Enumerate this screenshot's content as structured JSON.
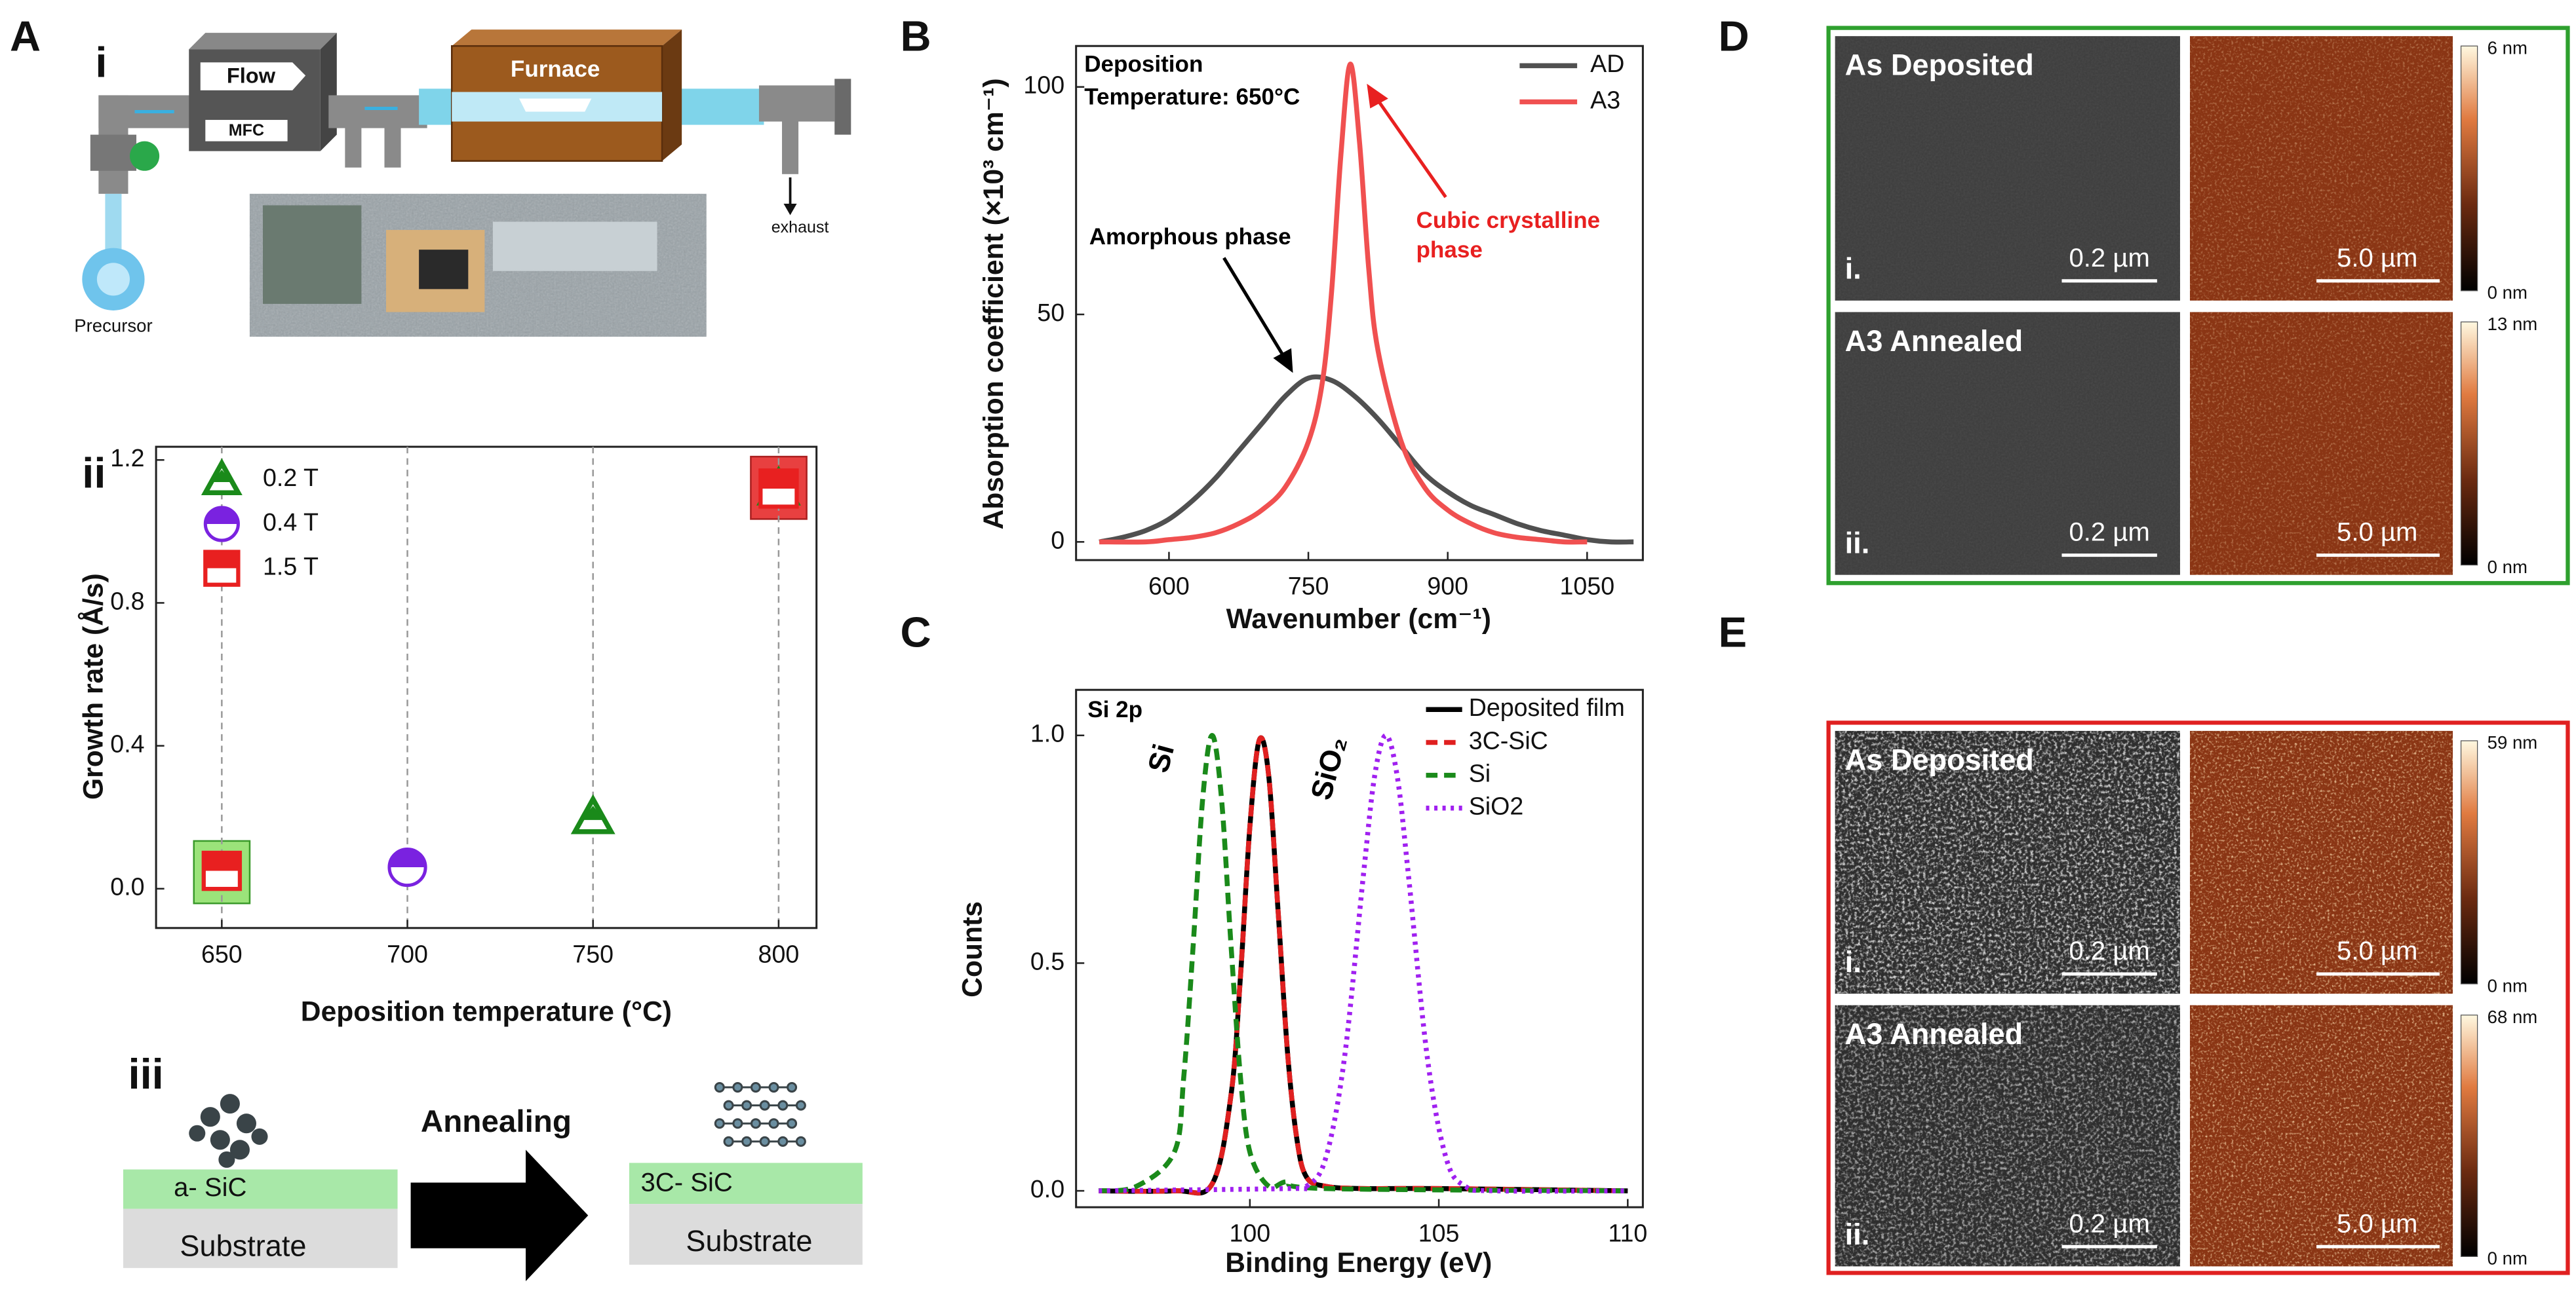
{
  "figure": {
    "panel_labels": [
      "A",
      "i",
      "ii",
      "iii",
      "B",
      "C",
      "D",
      "E"
    ],
    "schematic": {
      "flow": "Flow",
      "mfc": "MFC",
      "furnace": "Furnace",
      "exhaust": "exhaust",
      "precursor": "Precursor"
    },
    "annealing": {
      "before_film": "a- SiC",
      "before_substrate": "Substrate",
      "arrow": "Annealing",
      "after_film": "3C- SiC",
      "after_substrate": "Substrate"
    },
    "micrographs": {
      "D": [
        {
          "title": "As Deposited",
          "index": "i.",
          "sem_scale": "0.2 µm",
          "afm_scale": "5.0 µm",
          "cbar_max": "6 nm",
          "cbar_min": "0 nm"
        },
        {
          "title": "A3 Annealed",
          "index": "ii.",
          "sem_scale": "0.2 µm",
          "afm_scale": "5.0 µm",
          "cbar_max": "13 nm",
          "cbar_min": "0 nm"
        }
      ],
      "E": [
        {
          "title": "As Deposited",
          "index": "i.",
          "sem_scale": "0.2 µm",
          "afm_scale": "5.0 µm",
          "cbar_max": "59 nm",
          "cbar_min": "0 nm"
        },
        {
          "title": "A3 Annealed",
          "index": "ii.",
          "sem_scale": "0.2 µm",
          "afm_scale": "5.0 µm",
          "cbar_max": "68 nm",
          "cbar_min": "0 nm"
        }
      ]
    }
  },
  "chart_data": [
    {
      "type": "scatter",
      "xlabel": "Deposition temperature (°C)",
      "ylabel": "Growth rate (Å/s)",
      "xlim": [
        632.3,
        810.2
      ],
      "ylim": [
        -0.11,
        1.237
      ],
      "xticks": [
        650,
        700,
        750,
        800
      ],
      "yticks": [
        {
          "value": 0.0,
          "label": "0.0"
        },
        0.4,
        0.8,
        1.2
      ],
      "grid": "x",
      "legend": "upper left",
      "series": [
        {
          "name": "0.2 T",
          "color": "#1a8a1a",
          "marker": "triangle",
          "x": [
            750,
            800
          ],
          "values": [
            0.2,
            1.12
          ]
        },
        {
          "name": "0.4 T",
          "color": "#7a22e0",
          "marker": "half-circle",
          "x": [
            700
          ],
          "values": [
            0.06
          ]
        },
        {
          "name": "1.5 T",
          "color": "#e82020",
          "marker": "half-square",
          "x": [
            650,
            800
          ],
          "values": [
            0.05,
            1.12
          ]
        }
      ]
    },
    {
      "type": "line",
      "xlabel": "Wavenumber (cm⁻¹)",
      "ylabel": "Absorption coefficient (×10³ cm⁻¹)",
      "xlim": [
        500,
        1110
      ],
      "ylim": [
        -4,
        109
      ],
      "xticks": [
        600,
        750,
        900,
        1050
      ],
      "yticks": [
        0,
        50,
        100
      ],
      "legend": "upper right",
      "annotations": {
        "condition": [
          "Deposition",
          "Temperature: 650°C"
        ],
        "amorphous": "Amorphous phase",
        "cubic": [
          "Cubic crystalline",
          "phase"
        ]
      },
      "series": [
        {
          "name": "AD",
          "color": "#505050",
          "style": "solid",
          "x": [
            525,
            550,
            575,
            600,
            625,
            650,
            675,
            700,
            725,
            750,
            775,
            800,
            825,
            850,
            875,
            900,
            925,
            950,
            975,
            1000,
            1025,
            1050,
            1075,
            1100
          ],
          "values": [
            0,
            1,
            2.5,
            5,
            9,
            14,
            20,
            26,
            32,
            36,
            35.5,
            32,
            27,
            21,
            15,
            11,
            8,
            6,
            4,
            2.5,
            1.5,
            0.5,
            0,
            0
          ]
        },
        {
          "name": "A3",
          "color": "#f05050",
          "style": "solid",
          "x": [
            525,
            575,
            600,
            625,
            650,
            675,
            700,
            725,
            750,
            765,
            775,
            785,
            795,
            805,
            815,
            825,
            850,
            875,
            900,
            925,
            950,
            975,
            1000,
            1025,
            1050
          ],
          "values": [
            0,
            0,
            0.5,
            1,
            2,
            4,
            7,
            12,
            22,
            35,
            55,
            85,
            105,
            88,
            60,
            42,
            22,
            12,
            7,
            4,
            2,
            1,
            0.5,
            0,
            0
          ]
        }
      ]
    },
    {
      "type": "line",
      "xlabel": "Binding Energy (eV)",
      "ylabel": "Counts",
      "xlim": [
        95.4,
        110.4
      ],
      "ylim": [
        -0.036,
        1.1
      ],
      "xticks": [
        100,
        105,
        110
      ],
      "yticks": [
        {
          "value": 0.0,
          "label": "0.0"
        },
        0.5,
        {
          "value": 1.0,
          "label": "1.0"
        }
      ],
      "legend": "upper right",
      "annotations": {
        "core_level": "Si 2p",
        "si": "Si",
        "sio2": "SiO₂"
      },
      "series": [
        {
          "name": "Deposited film",
          "color": "#000000",
          "style": "solid",
          "x": [
            96,
            98,
            99,
            99.5,
            99.75,
            100,
            100.25,
            100.5,
            100.75,
            101,
            101.25,
            101.5,
            102,
            103,
            105,
            110
          ],
          "values": [
            0,
            0,
            0.015,
            0.21,
            0.47,
            0.8,
            0.99,
            0.91,
            0.61,
            0.3,
            0.11,
            0.03,
            0.01,
            0.005,
            0.005,
            0
          ]
        },
        {
          "name": "3C-SiC",
          "color": "#e02020",
          "style": "dashed",
          "x": [
            96,
            98,
            99,
            99.5,
            99.75,
            100,
            100.25,
            100.5,
            100.75,
            101,
            101.25,
            101.5,
            102,
            103,
            105,
            110
          ],
          "values": [
            0,
            0,
            0.015,
            0.21,
            0.47,
            0.8,
            0.99,
            0.91,
            0.61,
            0.3,
            0.11,
            0.03,
            0.01,
            0.005,
            0.005,
            0
          ]
        },
        {
          "name": "Si",
          "color": "#1a8a1a",
          "style": "dashed",
          "x": [
            96,
            97,
            98,
            98.25,
            98.5,
            98.75,
            99,
            99.25,
            99.5,
            99.75,
            100,
            100.5,
            101,
            102,
            110
          ],
          "values": [
            0,
            0.01,
            0.085,
            0.25,
            0.54,
            0.86,
            1.0,
            0.86,
            0.54,
            0.25,
            0.085,
            0.01,
            0.02,
            0.005,
            0
          ]
        },
        {
          "name": "SiO2",
          "color": "#a020f0",
          "style": "dotted",
          "x": [
            96,
            101,
            101.5,
            102,
            102.5,
            103,
            103.3,
            103.6,
            103.9,
            104.2,
            104.7,
            105.2,
            105.7,
            106.5,
            110
          ],
          "values": [
            0,
            0.005,
            0.01,
            0.07,
            0.29,
            0.69,
            0.91,
            1.0,
            0.91,
            0.69,
            0.29,
            0.07,
            0.01,
            0,
            0
          ]
        }
      ]
    }
  ]
}
